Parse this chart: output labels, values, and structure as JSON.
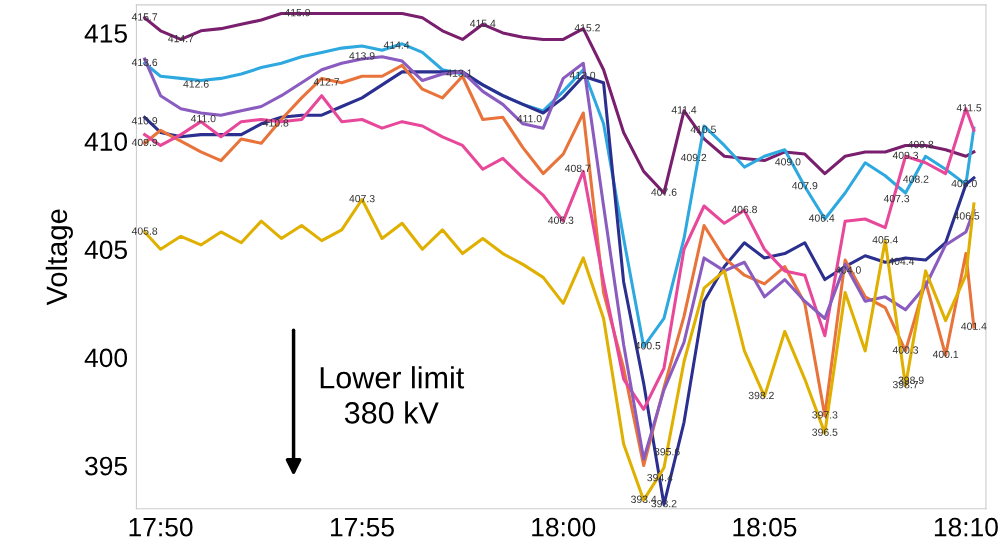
{
  "chart_data": {
    "type": "line",
    "ylabel": "Voltage",
    "x": [
      17.8267,
      17.8333,
      17.8417,
      17.85,
      17.8583,
      17.8667,
      17.875,
      17.8833,
      17.8917,
      17.9,
      17.9083,
      17.9167,
      17.925,
      17.9333,
      17.9417,
      17.95,
      17.9583,
      17.9667,
      17.975,
      17.9833,
      17.9917,
      18.0,
      18.0083,
      18.0167,
      18.025,
      18.0333,
      18.0417,
      18.05,
      18.0583,
      18.0667,
      18.075,
      18.0833,
      18.0917,
      18.1,
      18.1083,
      18.1167,
      18.125,
      18.1333,
      18.1417,
      18.15,
      18.1583,
      18.1667,
      18.17
    ],
    "series": [
      {
        "color": "#7a1f6e",
        "values": [
          415.7,
          415.1,
          414.7,
          415.1,
          415.2,
          415.4,
          415.6,
          415.9,
          415.9,
          415.9,
          415.9,
          415.9,
          415.9,
          415.9,
          415.7,
          415.1,
          414.7,
          415.4,
          415.0,
          414.8,
          414.7,
          414.7,
          415.2,
          413.3,
          410.4,
          408.6,
          407.6,
          411.4,
          410.1,
          409.3,
          409.2,
          409.1,
          409.5,
          409.4,
          408.5,
          409.3,
          409.5,
          409.5,
          409.8,
          409.8,
          409.6,
          409.3,
          409.5
        ]
      },
      {
        "color": "#2ea9e0",
        "values": [
          413.6,
          413.0,
          412.9,
          412.8,
          412.9,
          413.1,
          413.4,
          413.6,
          413.9,
          414.1,
          414.3,
          414.4,
          414.2,
          414.5,
          414.1,
          413.3,
          413.1,
          412.6,
          412.1,
          411.7,
          411.4,
          412.3,
          413.3,
          410.8,
          405.5,
          400.5,
          401.8,
          405.5,
          410.7,
          409.8,
          408.8,
          409.3,
          409.6,
          407.9,
          406.4,
          407.6,
          409.0,
          408.4,
          407.6,
          409.3,
          408.7,
          408.0,
          410.6
        ]
      },
      {
        "color": "#2b2f8f",
        "values": [
          411.1,
          410.4,
          410.2,
          410.3,
          410.3,
          410.3,
          410.8,
          411.1,
          411.2,
          411.2,
          411.6,
          412.0,
          412.6,
          413.2,
          413.2,
          413.2,
          413.2,
          412.6,
          412.1,
          411.7,
          411.3,
          412.0,
          413.0,
          412.7,
          403.5,
          398.8,
          393.2,
          397.0,
          402.6,
          404.2,
          405.3,
          404.6,
          404.8,
          405.3,
          403.6,
          404.2,
          404.7,
          404.4,
          404.6,
          404.5,
          405.3,
          408.0,
          408.3
        ]
      },
      {
        "color": "#e8743b",
        "values": [
          409.9,
          410.5,
          410.0,
          409.5,
          409.1,
          410.1,
          409.9,
          411.0,
          412.0,
          412.9,
          412.7,
          413.0,
          413.0,
          413.5,
          412.4,
          412.0,
          413.0,
          411.0,
          411.1,
          409.7,
          408.5,
          409.4,
          411.3,
          403.0,
          399.5,
          395.0,
          398.6,
          401.9,
          406.1,
          404.6,
          403.8,
          403.4,
          404.2,
          402.5,
          397.3,
          404.5,
          402.8,
          402.3,
          400.3,
          403.5,
          400.1,
          404.8,
          401.4
        ]
      },
      {
        "color": "#e8489a",
        "values": [
          410.3,
          409.8,
          410.3,
          410.9,
          410.2,
          410.9,
          411.0,
          410.9,
          411.0,
          412.1,
          410.9,
          411.0,
          410.6,
          410.9,
          410.7,
          410.2,
          409.8,
          408.7,
          409.2,
          408.3,
          407.5,
          406.3,
          408.6,
          403.5,
          399.0,
          397.6,
          399.5,
          405.0,
          407.0,
          406.2,
          406.8,
          405.0,
          404.0,
          403.8,
          401.0,
          406.3,
          406.4,
          406.0,
          409.3,
          409.0,
          408.5,
          411.5,
          410.5
        ]
      },
      {
        "color": "#8a5cc0",
        "values": [
          413.8,
          412.1,
          411.5,
          411.3,
          411.2,
          411.4,
          411.6,
          412.1,
          412.7,
          413.3,
          413.6,
          413.8,
          413.9,
          413.7,
          412.8,
          413.1,
          413.2,
          412.3,
          411.7,
          410.8,
          410.6,
          412.9,
          413.6,
          407.0,
          400.6,
          395.3,
          398.5,
          400.7,
          404.6,
          404.0,
          404.4,
          402.8,
          403.6,
          402.6,
          401.8,
          404.3,
          402.6,
          402.8,
          402.2,
          403.3,
          405.2,
          405.8,
          406.8
        ]
      },
      {
        "color": "#e0b000",
        "values": [
          405.8,
          405.0,
          405.6,
          405.2,
          405.8,
          405.3,
          406.3,
          405.5,
          406.1,
          405.4,
          405.9,
          407.3,
          405.5,
          406.2,
          405.0,
          405.9,
          404.8,
          405.5,
          404.8,
          404.3,
          403.7,
          402.5,
          404.6,
          401.8,
          396.0,
          393.4,
          394.9,
          399.8,
          403.2,
          404.0,
          400.3,
          398.2,
          401.2,
          399.0,
          396.5,
          403.0,
          400.3,
          405.4,
          398.7,
          404.0,
          401.7,
          403.8,
          407.1
        ]
      }
    ],
    "xlim": [
      17.8233,
      18.175
    ],
    "xticks": [
      {
        "value": 17.8333,
        "label": "17:50"
      },
      {
        "value": 17.9167,
        "label": "17:55"
      },
      {
        "value": 18.0,
        "label": "18:00"
      },
      {
        "value": 18.0833,
        "label": "18:05"
      },
      {
        "value": 18.1667,
        "label": "18:10"
      }
    ],
    "ylim": [
      393.0,
      416.3
    ],
    "yticks": [
      395,
      400,
      405,
      410,
      415
    ],
    "grid": false,
    "legend": false,
    "annotations": [
      "Lower limit\n380 kV",
      {
        "text": "415.7",
        "x": 17.8267,
        "y": 415.7
      },
      {
        "text": "414.7",
        "x": 17.8417,
        "y": 414.7
      },
      {
        "text": "415.9",
        "x": 17.89,
        "y": 415.9
      },
      {
        "text": "414.4",
        "x": 17.931,
        "y": 414.4
      },
      {
        "text": "413.6",
        "x": 17.8267,
        "y": 413.6
      },
      {
        "text": "412.6",
        "x": 17.848,
        "y": 412.6
      },
      {
        "text": "413.9",
        "x": 17.9167,
        "y": 413.9
      },
      {
        "text": "413.1",
        "x": 17.957,
        "y": 413.1
      },
      {
        "text": "412.7",
        "x": 17.902,
        "y": 412.7
      },
      {
        "text": "410.8",
        "x": 17.881,
        "y": 410.8
      },
      {
        "text": "409.9",
        "x": 17.8267,
        "y": 409.9
      },
      {
        "text": "411.0",
        "x": 17.851,
        "y": 411.0
      },
      {
        "text": "410.9",
        "x": 17.8267,
        "y": 410.9
      },
      {
        "text": "407.3",
        "x": 17.9167,
        "y": 407.3
      },
      {
        "text": "405.8",
        "x": 17.8267,
        "y": 405.8
      },
      {
        "text": "415.4",
        "x": 17.9667,
        "y": 415.4
      },
      {
        "text": "415.2",
        "x": 18.01,
        "y": 415.2
      },
      {
        "text": "413.0",
        "x": 18.008,
        "y": 413.0
      },
      {
        "text": "411.0",
        "x": 17.986,
        "y": 411.0
      },
      {
        "text": "408.7",
        "x": 18.006,
        "y": 408.7
      },
      {
        "text": "406.3",
        "x": 17.999,
        "y": 406.3
      },
      {
        "text": "411.4",
        "x": 18.05,
        "y": 411.4
      },
      {
        "text": "410.5",
        "x": 18.058,
        "y": 410.5
      },
      {
        "text": "409.2",
        "x": 18.054,
        "y": 409.2
      },
      {
        "text": "407.6",
        "x": 18.0417,
        "y": 407.6
      },
      {
        "text": "406.8",
        "x": 18.075,
        "y": 406.8
      },
      {
        "text": "407.9",
        "x": 18.1,
        "y": 407.9
      },
      {
        "text": "409.0",
        "x": 18.093,
        "y": 409.0
      },
      {
        "text": "406.4",
        "x": 18.107,
        "y": 406.4
      },
      {
        "text": "407.3",
        "x": 18.138,
        "y": 407.3
      },
      {
        "text": "405.4",
        "x": 18.1333,
        "y": 405.4
      },
      {
        "text": "409.3",
        "x": 18.1417,
        "y": 409.3
      },
      {
        "text": "409.8",
        "x": 18.148,
        "y": 409.8
      },
      {
        "text": "408.2",
        "x": 18.146,
        "y": 408.2
      },
      {
        "text": "411.5",
        "x": 18.168,
        "y": 411.5
      },
      {
        "text": "408.0",
        "x": 18.166,
        "y": 408.0
      },
      {
        "text": "406.5",
        "x": 18.167,
        "y": 406.5
      },
      {
        "text": "404.4",
        "x": 18.14,
        "y": 404.4
      },
      {
        "text": "404.0",
        "x": 18.118,
        "y": 404.0
      },
      {
        "text": "400.5",
        "x": 18.035,
        "y": 400.5
      },
      {
        "text": "395.6",
        "x": 18.043,
        "y": 395.6
      },
      {
        "text": "394.4",
        "x": 18.04,
        "y": 394.4
      },
      {
        "text": "393.4",
        "x": 18.0333,
        "y": 393.4
      },
      {
        "text": "393.2",
        "x": 18.0417,
        "y": 393.2
      },
      {
        "text": "398.2",
        "x": 18.082,
        "y": 398.2
      },
      {
        "text": "397.3",
        "x": 18.1083,
        "y": 397.3
      },
      {
        "text": "396.5",
        "x": 18.1083,
        "y": 396.5
      },
      {
        "text": "398.7",
        "x": 18.1417,
        "y": 398.7
      },
      {
        "text": "398.9",
        "x": 18.144,
        "y": 398.9
      },
      {
        "text": "400.1",
        "x": 18.1583,
        "y": 400.1
      },
      {
        "text": "400.3",
        "x": 18.1417,
        "y": 400.3
      },
      {
        "text": "401.4",
        "x": 18.17,
        "y": 401.4
      }
    ]
  }
}
